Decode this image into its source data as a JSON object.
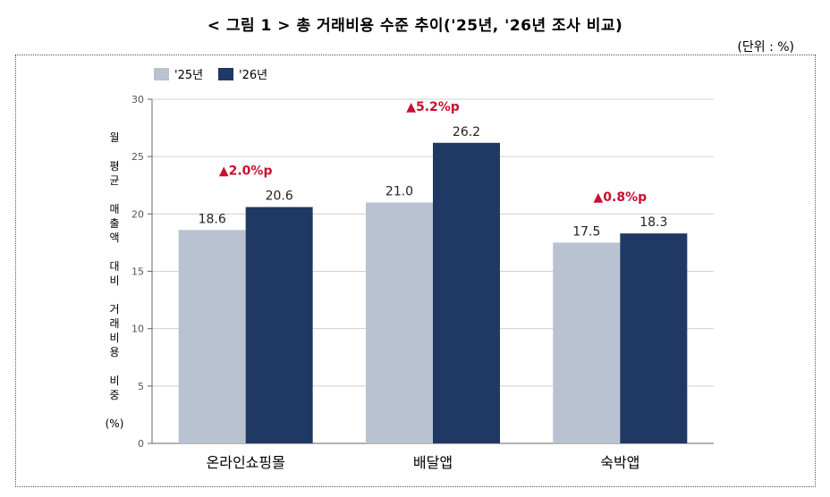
{
  "title": "< 그림 1 > 총 거래비용 수준 추이('25년, '26년 조사 비교)",
  "unit_note": "(단위 : %)",
  "colors": {
    "s2025": "#b8c2d0",
    "s2026": "#1f3864",
    "annotation": "#c8102e",
    "grid": "#d0d0d0",
    "axis": "#666666"
  },
  "chart_data": {
    "type": "bar",
    "categories": [
      "온라인쇼핑몰",
      "배달앱",
      "숙박앱"
    ],
    "series": [
      {
        "name": "'25년",
        "values": [
          18.6,
          21.0,
          17.5
        ]
      },
      {
        "name": "'26년",
        "values": [
          20.6,
          26.2,
          18.3
        ]
      }
    ],
    "value_labels": [
      [
        "18.6",
        "21.0",
        "17.5"
      ],
      [
        "20.6",
        "26.2",
        "18.3"
      ]
    ],
    "annotations": [
      "▲2.0%p",
      "▲5.2%p",
      "▲0.8%p"
    ],
    "ylabel_lines": [
      "월",
      "평균",
      "매출액",
      "대비",
      "거래비용",
      "비중",
      "(%)"
    ],
    "ylim": [
      0,
      30
    ],
    "yticks": [
      "0",
      "5",
      "10",
      "15",
      "20",
      "25",
      "30"
    ],
    "grid": true,
    "legend_position": "top-left"
  }
}
